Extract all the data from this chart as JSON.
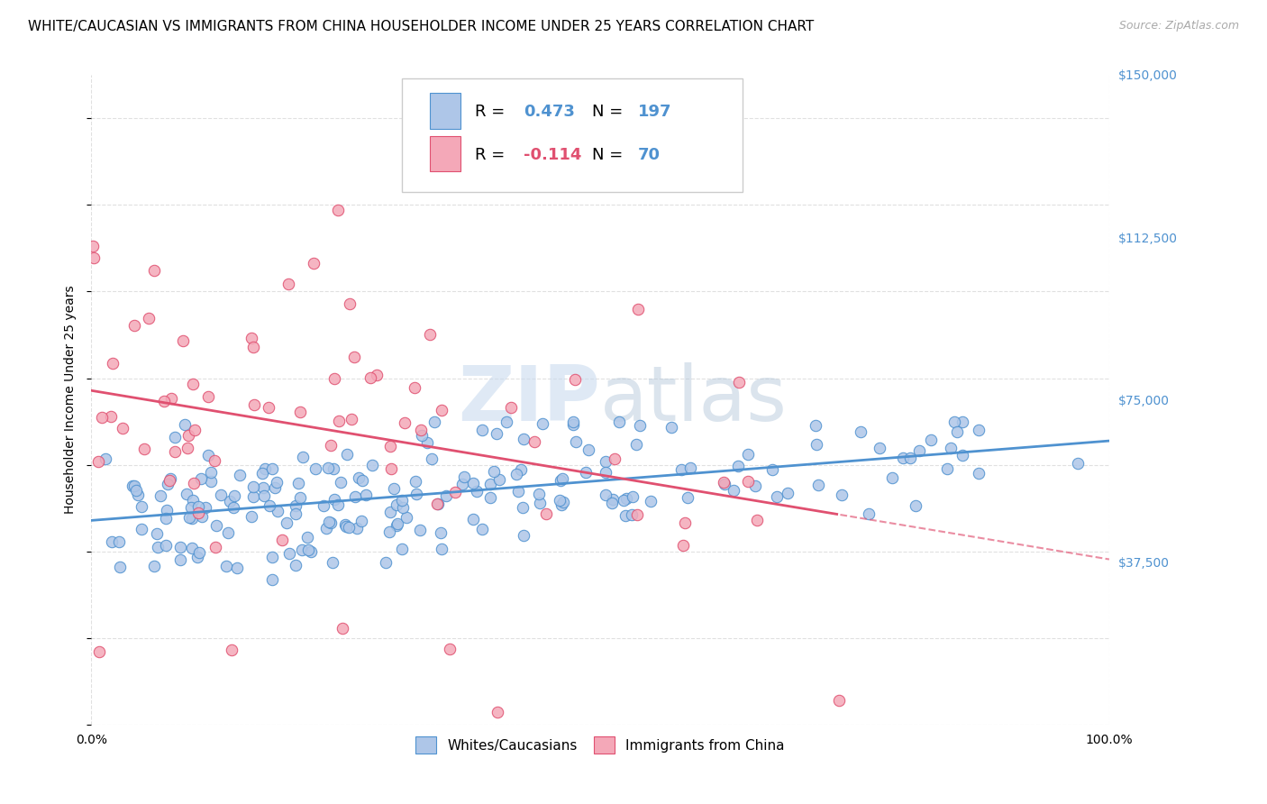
{
  "title": "WHITE/CAUCASIAN VS IMMIGRANTS FROM CHINA HOUSEHOLDER INCOME UNDER 25 YEARS CORRELATION CHART",
  "source": "Source: ZipAtlas.com",
  "ylabel": "Householder Income Under 25 years",
  "xlim": [
    0,
    1.0
  ],
  "ylim": [
    0,
    150000
  ],
  "yticks": [
    37500,
    75000,
    112500,
    150000
  ],
  "ytick_labels": [
    "$37,500",
    "$75,000",
    "$112,500",
    "$150,000"
  ],
  "xticks": [
    0.0,
    1.0
  ],
  "xtick_labels": [
    "0.0%",
    "100.0%"
  ],
  "blue_color": "#aec6e8",
  "blue_line_color": "#4f92d0",
  "pink_color": "#f4a8b8",
  "pink_line_color": "#e05070",
  "blue_R": 0.473,
  "blue_N": 197,
  "pink_R": -0.114,
  "pink_N": 70,
  "watermark_zip": "ZIP",
  "watermark_atlas": "atlas",
  "background_color": "#ffffff",
  "grid_color": "#dddddd",
  "title_fontsize": 11,
  "axis_label_fontsize": 10,
  "tick_label_fontsize": 10,
  "seed_blue": 42,
  "seed_pink": 7
}
